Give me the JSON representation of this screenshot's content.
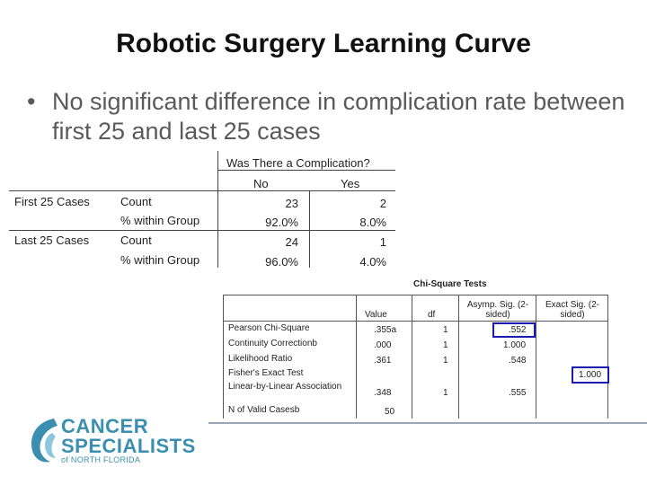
{
  "slide": {
    "title": "Robotic Surgery Learning Curve",
    "bullet": "No significant difference in complication rate between first 25 and last 25 cases"
  },
  "crosstab": {
    "question": "Was There a Complication?",
    "col_no": "No",
    "col_yes": "Yes",
    "rows": [
      {
        "group": "First 25 Cases",
        "stat1": "Count",
        "stat2": "% within Group",
        "no_count": "23",
        "yes_count": "2",
        "no_pct": "92.0%",
        "yes_pct": "8.0%"
      },
      {
        "group": "Last 25 Cases",
        "stat1": "Count",
        "stat2": "% within Group",
        "no_count": "24",
        "yes_count": "1",
        "no_pct": "96.0%",
        "yes_pct": "4.0%"
      }
    ]
  },
  "chisq": {
    "title": "Chi-Square Tests",
    "headers": {
      "value": "Value",
      "df": "df",
      "asymp": "Asymp. Sig. (2-sided)",
      "exact": "Exact Sig. (2-sided)"
    },
    "rows": [
      {
        "label": "Pearson Chi-Square",
        "value": ".355a",
        "df": "1",
        "asymp": ".552",
        "exact": ""
      },
      {
        "label": "Continuity Correctionb",
        "value": ".000",
        "df": "1",
        "asymp": "1.000",
        "exact": ""
      },
      {
        "label": "Likelihood Ratio",
        "value": ".361",
        "df": "1",
        "asymp": ".548",
        "exact": ""
      },
      {
        "label": "Fisher's Exact Test",
        "value": "",
        "df": "",
        "asymp": "",
        "exact": "1.000"
      },
      {
        "label": "Linear-by-Linear Association",
        "value": ".348",
        "df": "1",
        "asymp": ".555",
        "exact": ""
      },
      {
        "label": "N of Valid Casesb",
        "value": "50",
        "df": "",
        "asymp": "",
        "exact": ""
      }
    ]
  },
  "logo": {
    "line1": "CANCER",
    "line2": "SPECIALISTS",
    "line3": "of NORTH FLORIDA"
  },
  "colors": {
    "logo": "#3a8fb0",
    "highlight_box": "#1a1ab0",
    "bullet_text": "#5a5a5a"
  }
}
